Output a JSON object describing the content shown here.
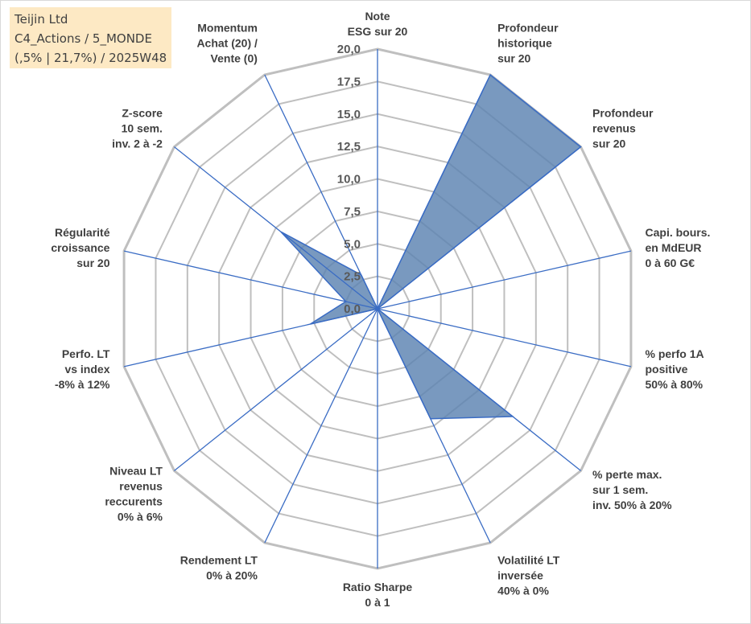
{
  "info": {
    "line1": "Teijin Ltd",
    "line2": "C4_Actions / 5_MONDE",
    "line3": "(,5% | 21,7%) / 2025W48"
  },
  "colors": {
    "fill": "#5b82b1",
    "stroke": "#3a6cc4",
    "grid": "#bfbfbf",
    "background_box": "#fde9c4"
  },
  "chart_data": {
    "type": "radar",
    "title": "",
    "r_min": 0,
    "r_max": 20,
    "r_step": 2.5,
    "tick_labels": [
      "0,0",
      "2,5",
      "5,0",
      "7,5",
      "10,0",
      "12,5",
      "15,0",
      "17,5",
      "20,0"
    ],
    "axes": [
      {
        "label": [
          "Note",
          "ESG sur 20"
        ],
        "value": 0
      },
      {
        "label": [
          "Profondeur",
          "historique",
          "sur 20"
        ],
        "value": 20
      },
      {
        "label": [
          "Profondeur",
          "revenus",
          "sur 20"
        ],
        "value": 20
      },
      {
        "label": [
          "Capi. bours.",
          "en MdEUR",
          "0 à 60 G€"
        ],
        "value": 0
      },
      {
        "label": [
          "% perfo 1A",
          "positive",
          "50% à 80%"
        ],
        "value": 0
      },
      {
        "label": [
          "% perte max.",
          "sur 1 sem.",
          "inv. 50% à 20%"
        ],
        "value": 13.3
      },
      {
        "label": [
          "Volatilité LT",
          "inversée",
          "40% à 0%"
        ],
        "value": 9.4
      },
      {
        "label": [
          "Ratio Sharpe",
          "0 à 1"
        ],
        "value": 0
      },
      {
        "label": [
          "Rendement LT",
          "0% à 20%"
        ],
        "value": 0
      },
      {
        "label": [
          "Niveau LT",
          "revenus",
          "reccurents",
          "0% à 6%"
        ],
        "value": 0
      },
      {
        "label": [
          "Perfo. LT",
          "vs index",
          "-8% à 12%"
        ],
        "value": 5.3
      },
      {
        "label": [
          "Régularité",
          "croissance",
          "sur 20"
        ],
        "value": 2.5
      },
      {
        "label": [
          "Z-score",
          "10 sem.",
          "inv. 2 à -2"
        ],
        "value": 9.5
      },
      {
        "label": [
          "Momentum",
          "Achat (20) /",
          "Vente (0)"
        ],
        "value": 2.9
      }
    ],
    "series": [
      {
        "name": "Teijin Ltd",
        "values": [
          0,
          20,
          20,
          0,
          0,
          13.3,
          9.4,
          0,
          0,
          0,
          5.3,
          2.5,
          9.5,
          2.9
        ]
      }
    ]
  }
}
